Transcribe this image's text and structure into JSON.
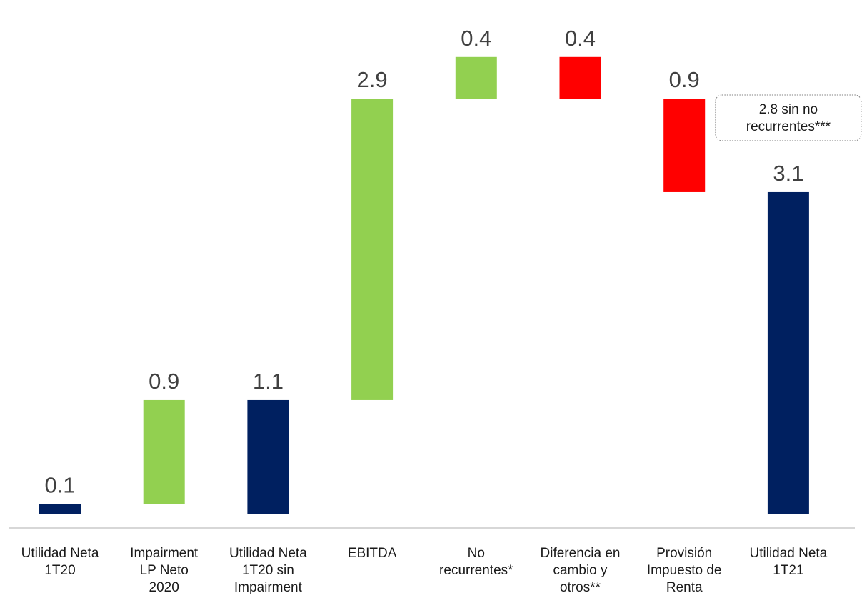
{
  "chart_data": {
    "type": "bar",
    "subtype": "waterfall",
    "categories": [
      [
        "Utilidad Neta",
        "1T20"
      ],
      [
        "Impairment",
        "LP Neto",
        "2020"
      ],
      [
        "Utilidad Neta",
        "1T20 sin",
        "Impairment"
      ],
      [
        "EBITDA"
      ],
      [
        "No",
        "recurrentes*"
      ],
      [
        "Diferencia en",
        "cambio y",
        "otros**"
      ],
      [
        "Provisión",
        "Impuesto de",
        "Renta"
      ],
      [
        "Utilidad Neta",
        "1T21"
      ]
    ],
    "bars": [
      {
        "kind": "total",
        "start": 0,
        "end": 0.1,
        "label": "0.1"
      },
      {
        "kind": "increase",
        "start": 0.1,
        "end": 1.1,
        "label": "0.9"
      },
      {
        "kind": "total",
        "start": 0,
        "end": 1.1,
        "label": "1.1"
      },
      {
        "kind": "increase",
        "start": 1.1,
        "end": 4.0,
        "label": "2.9"
      },
      {
        "kind": "increase",
        "start": 4.0,
        "end": 4.4,
        "label": "0.4"
      },
      {
        "kind": "decrease",
        "start": 4.4,
        "end": 4.0,
        "label": "0.4"
      },
      {
        "kind": "decrease",
        "start": 4.0,
        "end": 3.1,
        "label": "0.9"
      },
      {
        "kind": "total",
        "start": 0,
        "end": 3.1,
        "label": "3.1"
      }
    ],
    "colors": {
      "total": "#002060",
      "increase": "#92D050",
      "decrease": "#FF0000"
    },
    "annotation": {
      "lines": [
        "2.8 sin no",
        "recurrentes***"
      ],
      "bar_index": 7
    },
    "title": "",
    "xlabel": "",
    "ylabel": "",
    "ylim": [
      0,
      4.4
    ],
    "grid": false,
    "legend": "none"
  }
}
